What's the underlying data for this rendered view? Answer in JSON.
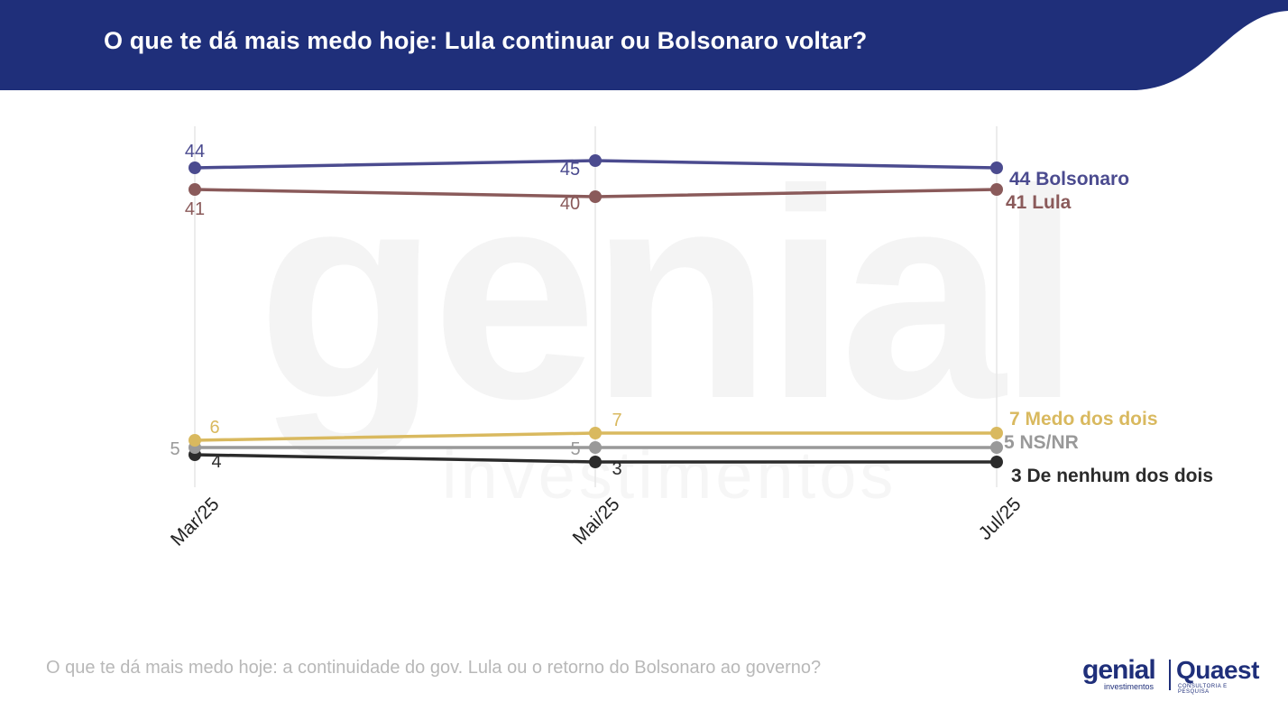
{
  "header": {
    "title": "O que te dá mais medo hoje: Lula continuar ou Bolsonaro voltar?",
    "background_color": "#1f2f7a"
  },
  "footnote": "O que te dá mais medo hoje: a continuidade do gov. Lula ou o retorno do Bolsonaro ao governo?",
  "logos": {
    "genial": "genial",
    "genial_sub": "investimentos",
    "quaest": "Quaest",
    "quaest_sub": "CONSULTORIA E PESQUISA"
  },
  "watermark": {
    "word": "genial",
    "sub": "investimentos"
  },
  "chart_data": {
    "type": "line",
    "categories": [
      "Mar/25",
      "Mai/25",
      "Jul/25"
    ],
    "ylim": [
      0,
      50
    ],
    "grid": "vertical",
    "series": [
      {
        "name": "Bolsonaro",
        "values": [
          44,
          45,
          44
        ],
        "color": "#4b4b8f",
        "end_label": "44 Bolsonaro",
        "point_labels": [
          "44",
          "45",
          ""
        ]
      },
      {
        "name": "Lula",
        "values": [
          41,
          40,
          41
        ],
        "color": "#8a5a5a",
        "end_label": "41 Lula",
        "point_labels": [
          "41",
          "40",
          ""
        ]
      },
      {
        "name": "Medo dos dois",
        "values": [
          6,
          7,
          7
        ],
        "color": "#d9b95f",
        "end_label": "7 Medo dos dois",
        "point_labels": [
          "6",
          "7",
          ""
        ]
      },
      {
        "name": "NS/NR",
        "values": [
          5,
          5,
          5
        ],
        "color": "#999999",
        "end_label": "5 NS/NR",
        "point_labels": [
          "5",
          "5",
          ""
        ]
      },
      {
        "name": "De nenhum dos dois",
        "values": [
          4,
          3,
          3
        ],
        "color": "#2b2b2b",
        "end_label": "3 De nenhum dos dois",
        "point_labels": [
          "4",
          "3",
          ""
        ]
      }
    ]
  }
}
